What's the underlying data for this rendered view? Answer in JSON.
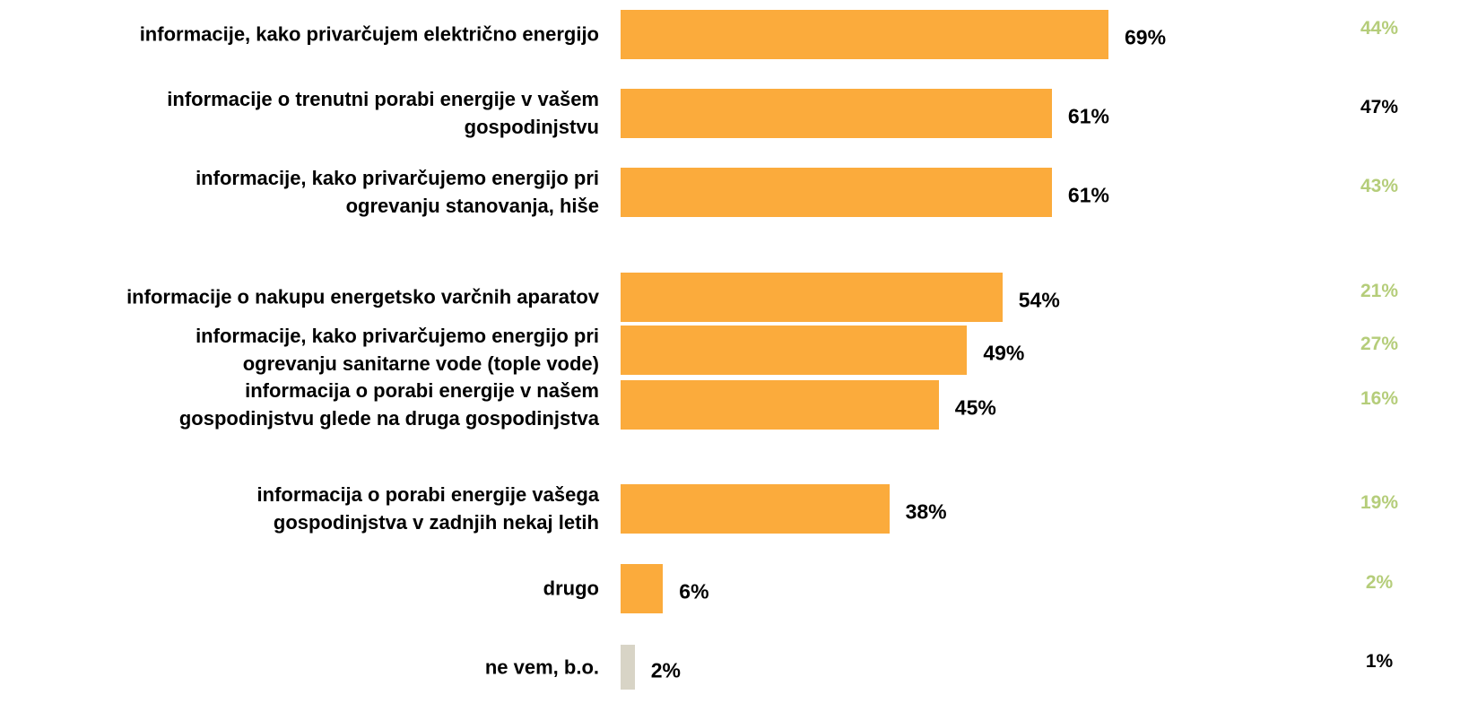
{
  "chart_data": {
    "type": "bar",
    "orientation": "horizontal",
    "categories": [
      "informacije, kako privarčujem električno energijo",
      "informacije o trenutni porabi energije v vašem\ngospodinjstvu",
      "informacije, kako privarčujemo energijo pri\nogrevanju stanovanja, hiše",
      "informacije o nakupu energetsko varčnih aparatov",
      "informacije, kako privarčujemo energijo pri\nogrevanju sanitarne vode (tople vode)",
      "informacija o porabi energije v našem\ngospodinjstvu glede na druga gospodinjstva",
      "informacija o porabi energije vašega\ngospodinjstva v zadnjih nekaj letih",
      "drugo",
      "ne vem, b.o."
    ],
    "series": [
      {
        "values": [
          69,
          61,
          61,
          54,
          49,
          45,
          38,
          6,
          2
        ],
        "value_labels": [
          "69%",
          "61%",
          "61%",
          "54%",
          "49%",
          "45%",
          "38%",
          "6%",
          "2%"
        ],
        "colors": [
          "#fbab3c",
          "#fbab3c",
          "#fbab3c",
          "#fbab3c",
          "#fbab3c",
          "#fbab3c",
          "#fbab3c",
          "#fbab3c",
          "#d8d4c6"
        ]
      },
      {
        "values": [
          44,
          47,
          43,
          21,
          27,
          16,
          19,
          2,
          1
        ],
        "value_labels": [
          "44%",
          "47%",
          "43%",
          "21%",
          "27%",
          "16%",
          "19%",
          "2%",
          "1%"
        ],
        "colors": [
          "#b5cd7a",
          "#000000",
          "#b5cd7a",
          "#b5cd7a",
          "#b5cd7a",
          "#b5cd7a",
          "#b5cd7a",
          "#b5cd7a",
          "#000000"
        ]
      }
    ]
  }
}
